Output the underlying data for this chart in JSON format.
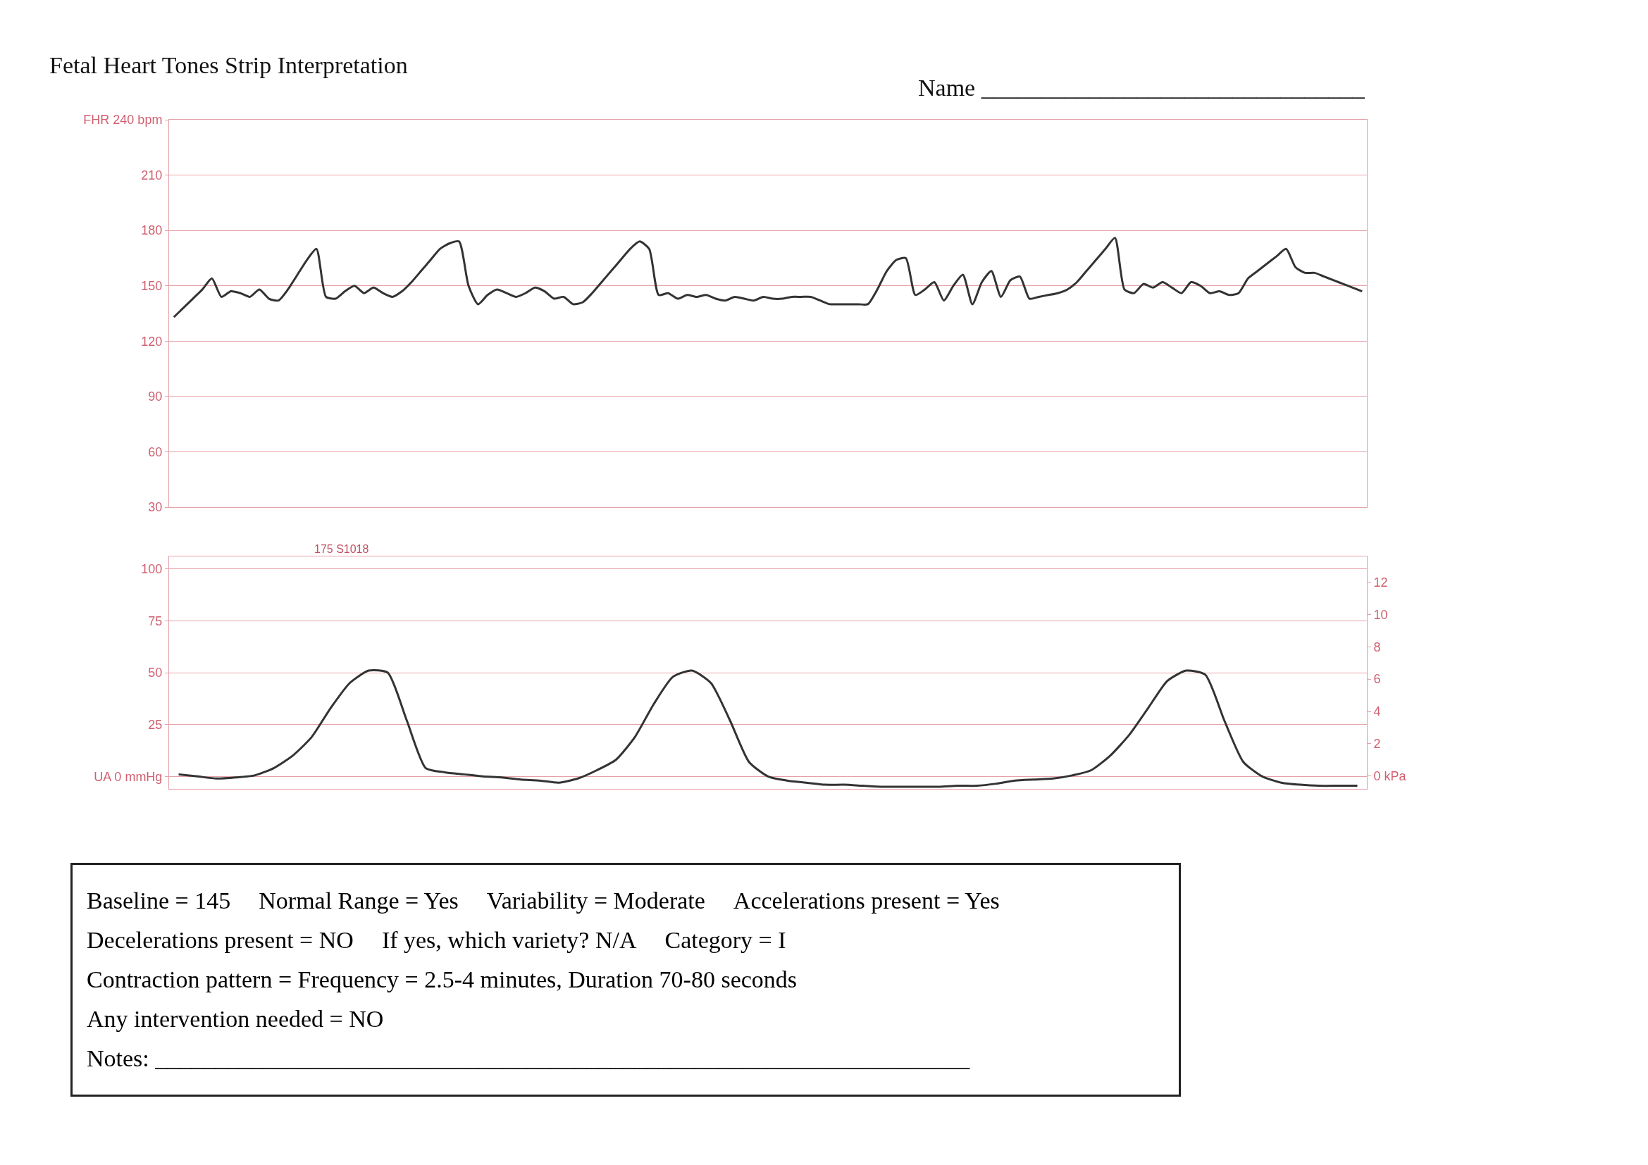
{
  "chart_data": [
    {
      "type": "line",
      "title": "Fetal Heart Tones Strip Interpretation",
      "annotations": [
        "Name ________________________________"
      ],
      "categories": [
        null,
        null,
        null,
        null,
        null,
        null,
        null,
        null,
        null,
        null,
        null,
        null,
        null,
        null,
        null,
        null,
        null,
        null,
        null,
        null,
        null,
        null,
        null,
        null,
        null,
        null,
        null,
        null,
        null,
        null,
        null,
        null,
        null,
        null,
        null,
        null,
        null,
        null,
        null,
        null,
        null,
        null,
        null,
        null,
        null,
        null,
        null,
        null,
        null,
        null,
        null,
        null,
        null,
        null,
        null,
        null,
        null,
        null,
        null,
        null,
        null,
        null,
        null,
        null,
        null,
        null,
        null,
        null,
        null,
        null,
        null,
        null,
        null,
        null,
        null,
        null,
        null,
        null,
        null,
        null,
        null,
        null,
        null,
        null,
        null,
        null,
        null,
        null,
        null,
        null,
        null,
        null,
        null,
        null,
        null,
        null,
        null,
        null,
        null,
        null,
        null,
        null,
        null,
        null,
        null,
        null,
        null,
        null,
        null,
        null,
        null,
        null,
        null,
        null,
        null,
        null,
        null,
        null,
        null,
        null,
        null,
        null,
        null,
        null,
        null,
        null
      ],
      "series": [
        {
          "color": "#333333",
          "values": [
            133,
            138,
            143,
            148,
            154,
            144,
            147,
            146,
            144,
            148,
            143,
            142,
            148,
            156,
            164,
            170,
            144,
            143,
            147,
            150,
            146,
            149,
            146,
            144,
            147,
            152,
            158,
            164,
            170,
            173,
            174,
            150,
            140,
            145,
            148,
            146,
            144,
            146,
            149,
            147,
            143,
            144,
            140,
            141,
            146,
            152,
            158,
            164,
            170,
            174,
            170,
            145,
            146,
            143,
            145,
            144,
            145,
            143,
            142,
            144,
            143,
            142,
            144,
            143,
            143,
            144,
            144,
            144,
            142,
            140,
            140,
            140,
            140,
            140,
            148,
            158,
            164,
            165,
            145,
            148,
            152,
            142,
            150,
            156,
            140,
            152,
            158,
            144,
            153,
            155,
            143,
            144,
            145,
            146,
            148,
            152,
            158,
            164,
            170,
            176,
            148,
            146,
            151,
            149,
            152,
            149,
            146,
            152,
            150,
            146,
            147,
            145,
            146,
            154,
            158,
            162,
            166,
            170,
            160,
            157,
            157,
            155,
            153,
            151,
            149,
            147
          ]
        }
      ],
      "ylim": [
        30,
        240
      ],
      "yticks": [
        30,
        60,
        90,
        120,
        150,
        180,
        210,
        {
          "value": 240,
          "label": "FHR 240 bpm"
        }
      ],
      "grid": "y",
      "tick_labels": "y",
      "marker": "none",
      "line_style": "solid"
    },
    {
      "type": "line",
      "annotations": [
        "175 S1018"
      ],
      "categories": [
        null,
        null,
        null,
        null,
        null,
        null,
        null,
        null,
        null,
        null,
        null,
        null,
        null,
        null,
        null,
        null,
        null,
        null,
        null,
        null,
        null,
        null,
        null,
        null,
        null,
        null,
        null,
        null,
        null,
        null,
        null,
        null,
        null,
        null,
        null,
        null,
        null,
        null,
        null,
        null,
        null,
        null,
        null,
        null,
        null,
        null,
        null,
        null,
        null,
        null,
        null,
        null,
        null,
        null,
        null,
        null,
        null,
        null,
        null,
        null,
        null,
        null,
        null
      ],
      "series": [
        {
          "color": "#333333",
          "values": [
            1,
            0,
            -1,
            -0.5,
            0.5,
            4,
            10,
            19,
            33,
            45,
            51,
            50,
            27,
            4,
            2,
            1,
            0,
            -0.5,
            -1.5,
            -2,
            -3,
            -1,
            3,
            8,
            19,
            35,
            48,
            51,
            45,
            27,
            7,
            0,
            -2,
            -3,
            -4,
            -4,
            -4.5,
            -5,
            -5,
            -5,
            -5,
            -4.5,
            -4.5,
            -3.5,
            -2,
            -1.5,
            -1,
            0.5,
            3,
            10,
            20,
            33,
            46,
            51,
            49,
            27,
            7,
            0,
            -3,
            -4,
            -4.5,
            -4.5,
            -4.5
          ]
        }
      ],
      "ylim": [
        -6,
        106
      ],
      "yticks": [
        {
          "value": 0,
          "label": "UA 0 mmHg"
        },
        25,
        50,
        75,
        100
      ],
      "y2lim": [
        -0.8,
        13.6
      ],
      "y2ticks": [
        {
          "value": 0,
          "label": "0 kPa"
        },
        2,
        4,
        6,
        8,
        10,
        12
      ],
      "grid": "y",
      "tick_labels": "y",
      "marker": "none",
      "line_style": "solid"
    },
    {
      "type": "other",
      "annotations": [
        "Baseline = 145",
        "Normal Range = Yes",
        "Variability = Moderate",
        "Accelerations present = Yes",
        "Decelerations present = NO",
        "If yes, which variety? N/A",
        "Category = I",
        "Contraction pattern = Frequency = 2.5-4 minutes, Duration 70-80 seconds",
        "Any intervention needed = NO",
        "Notes: ____________________________________________________________________"
      ]
    }
  ]
}
